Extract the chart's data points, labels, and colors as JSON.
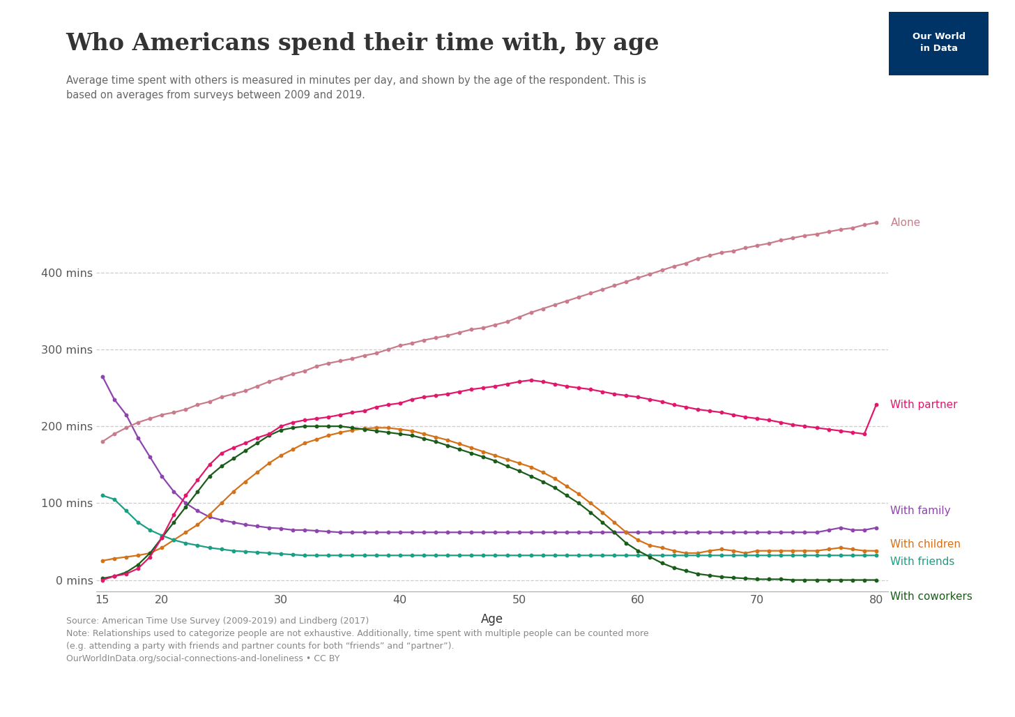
{
  "title": "Who Americans spend their time with, by age",
  "subtitle": "Average time spent with others is measured in minutes per day, and shown by the age of the respondent. This is\nbased on averages from surveys between 2009 and 2019.",
  "xlabel": "Age",
  "source_text": "Source: American Time Use Survey (2009-2019) and Lindberg (2017)\nNote: Relationships used to categorize people are not exhaustive. Additionally, time spent with multiple people can be counted more\n(e.g. attending a party with friends and partner counts for both “friends” and “partner”).\nOurWorldInData.org/social-connections-and-loneliness • CC BY",
  "ages": [
    15,
    16,
    17,
    18,
    19,
    20,
    21,
    22,
    23,
    24,
    25,
    26,
    27,
    28,
    29,
    30,
    31,
    32,
    33,
    34,
    35,
    36,
    37,
    38,
    39,
    40,
    41,
    42,
    43,
    44,
    45,
    46,
    47,
    48,
    49,
    50,
    51,
    52,
    53,
    54,
    55,
    56,
    57,
    58,
    59,
    60,
    61,
    62,
    63,
    64,
    65,
    66,
    67,
    68,
    69,
    70,
    71,
    72,
    73,
    74,
    75,
    76,
    77,
    78,
    79,
    80
  ],
  "alone": [
    180,
    190,
    198,
    205,
    210,
    215,
    218,
    222,
    228,
    232,
    238,
    242,
    246,
    252,
    258,
    263,
    268,
    272,
    278,
    282,
    285,
    288,
    292,
    295,
    300,
    305,
    308,
    312,
    315,
    318,
    322,
    326,
    328,
    332,
    336,
    342,
    348,
    353,
    358,
    363,
    368,
    373,
    378,
    383,
    388,
    393,
    398,
    403,
    408,
    412,
    418,
    422,
    426,
    428,
    432,
    435,
    438,
    442,
    445,
    448,
    450,
    453,
    456,
    458,
    462,
    465
  ],
  "partner": [
    0,
    5,
    8,
    15,
    30,
    55,
    85,
    110,
    130,
    150,
    165,
    172,
    178,
    185,
    190,
    200,
    205,
    208,
    210,
    212,
    215,
    218,
    220,
    225,
    228,
    230,
    235,
    238,
    240,
    242,
    245,
    248,
    250,
    252,
    255,
    258,
    260,
    258,
    255,
    252,
    250,
    248,
    245,
    242,
    240,
    238,
    235,
    232,
    228,
    225,
    222,
    220,
    218,
    215,
    212,
    210,
    208,
    205,
    202,
    200,
    198,
    196,
    194,
    192,
    190,
    228
  ],
  "family": [
    265,
    235,
    215,
    185,
    160,
    135,
    115,
    100,
    90,
    82,
    78,
    75,
    72,
    70,
    68,
    67,
    65,
    65,
    64,
    63,
    62,
    62,
    62,
    62,
    62,
    62,
    62,
    62,
    62,
    62,
    62,
    62,
    62,
    62,
    62,
    62,
    62,
    62,
    62,
    62,
    62,
    62,
    62,
    62,
    62,
    62,
    62,
    62,
    62,
    62,
    62,
    62,
    62,
    62,
    62,
    62,
    62,
    62,
    62,
    62,
    62,
    65,
    68,
    65,
    65,
    68
  ],
  "children": [
    25,
    28,
    30,
    32,
    35,
    42,
    52,
    62,
    72,
    85,
    100,
    115,
    128,
    140,
    152,
    162,
    170,
    178,
    183,
    188,
    192,
    195,
    197,
    198,
    198,
    196,
    194,
    190,
    186,
    182,
    177,
    172,
    167,
    162,
    157,
    152,
    147,
    140,
    132,
    122,
    112,
    100,
    88,
    75,
    62,
    52,
    45,
    42,
    38,
    35,
    35,
    38,
    40,
    38,
    35,
    38,
    38,
    38,
    38,
    38,
    38,
    40,
    42,
    40,
    38,
    38
  ],
  "friends": [
    110,
    105,
    90,
    75,
    65,
    58,
    52,
    48,
    45,
    42,
    40,
    38,
    37,
    36,
    35,
    34,
    33,
    32,
    32,
    32,
    32,
    32,
    32,
    32,
    32,
    32,
    32,
    32,
    32,
    32,
    32,
    32,
    32,
    32,
    32,
    32,
    32,
    32,
    32,
    32,
    32,
    32,
    32,
    32,
    32,
    32,
    32,
    32,
    32,
    32,
    32,
    32,
    32,
    32,
    32,
    32,
    32,
    32,
    32,
    32,
    32,
    32,
    32,
    32,
    32,
    32
  ],
  "coworkers": [
    2,
    5,
    10,
    20,
    35,
    55,
    75,
    95,
    115,
    135,
    148,
    158,
    168,
    178,
    188,
    195,
    198,
    200,
    200,
    200,
    200,
    198,
    196,
    194,
    192,
    190,
    188,
    184,
    180,
    175,
    170,
    165,
    160,
    155,
    148,
    142,
    135,
    128,
    120,
    110,
    100,
    88,
    75,
    62,
    48,
    38,
    30,
    22,
    16,
    12,
    8,
    6,
    4,
    3,
    2,
    1,
    1,
    1,
    0,
    0,
    0,
    0,
    0,
    0,
    0,
    0
  ],
  "alone_color": "#c97b8a",
  "partner_color": "#e0176a",
  "family_color": "#8e44ad",
  "children_color": "#d4721a",
  "friends_color": "#1a9e84",
  "coworkers_color": "#1a5c1a",
  "yticks": [
    0,
    100,
    200,
    300,
    400
  ],
  "ytick_labels": [
    "0 mins",
    "100 mins",
    "200 mins",
    "300 mins",
    "400 mins"
  ],
  "ylim": [
    -15,
    540
  ],
  "xlim": [
    14.5,
    81
  ]
}
